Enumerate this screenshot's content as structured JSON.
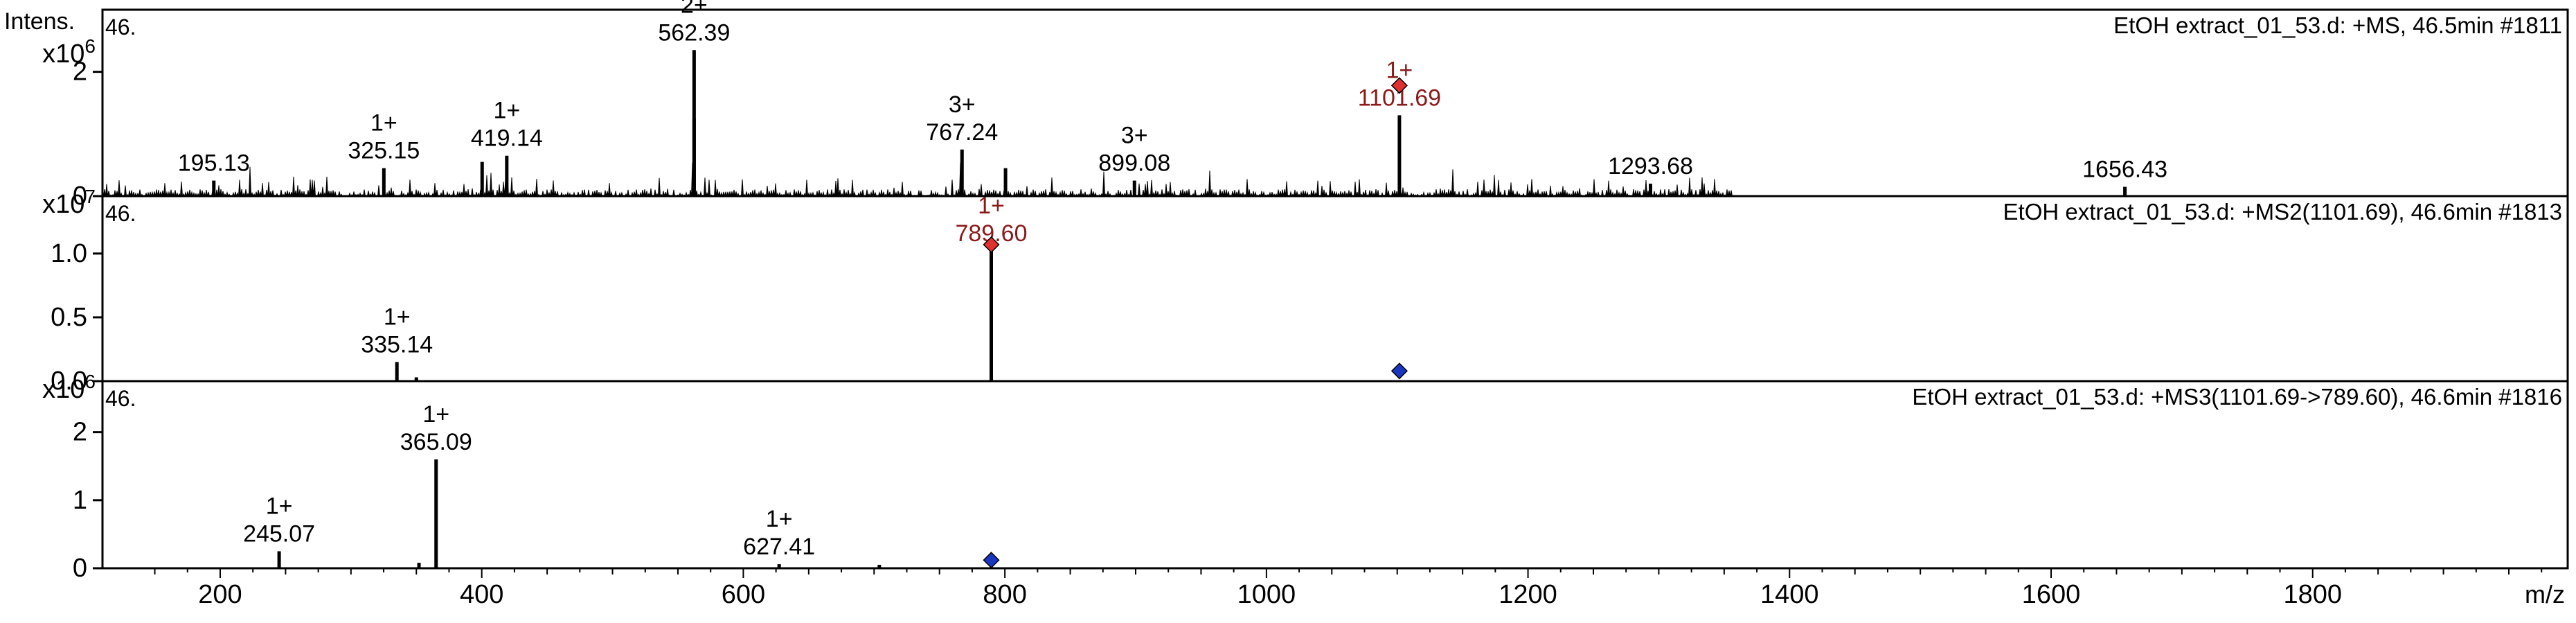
{
  "chart_data": [
    {
      "type": "line",
      "title": "EtOH extract_01_53.d: +MS, 46.5min #1811",
      "ylabel": "Intens.",
      "y_multiplier": "x10",
      "y_exponent": "6",
      "corner_label": "46.",
      "ylim": [
        0,
        3.0
      ],
      "yticks": [
        0,
        2
      ],
      "peaks": [
        {
          "x": 195.13,
          "y": 0.25
        },
        {
          "x": 325.15,
          "y": 0.45
        },
        {
          "x": 400.3,
          "y": 0.55
        },
        {
          "x": 419.14,
          "y": 0.65
        },
        {
          "x": 562.39,
          "y": 1.25
        },
        {
          "x": 562.39,
          "y": 2.35
        },
        {
          "x": 767.24,
          "y": 0.75
        },
        {
          "x": 800.5,
          "y": 0.45
        },
        {
          "x": 899.08,
          "y": 0.25
        },
        {
          "x": 1101.69,
          "y": 1.3
        },
        {
          "x": 1293.68,
          "y": 0.2
        },
        {
          "x": 1656.43,
          "y": 0.15
        }
      ],
      "labels": [
        {
          "x": 195.13,
          "y": 0.25,
          "mz": "195.13",
          "charge": "",
          "color": "#000000"
        },
        {
          "x": 325.15,
          "y": 0.45,
          "mz": "325.15",
          "charge": "1+",
          "color": "#000000"
        },
        {
          "x": 419.14,
          "y": 0.65,
          "mz": "419.14",
          "charge": "1+",
          "color": "#000000"
        },
        {
          "x": 562.39,
          "y": 2.35,
          "mz": "562.39",
          "charge": "2+",
          "color": "#000000"
        },
        {
          "x": 767.24,
          "y": 0.75,
          "mz": "767.24",
          "charge": "3+",
          "color": "#000000"
        },
        {
          "x": 899.08,
          "y": 0.25,
          "mz": "899.08",
          "charge": "3+",
          "color": "#000000"
        },
        {
          "x": 1101.69,
          "y": 1.3,
          "mz": "1101.69",
          "charge": "1+",
          "color": "#8b1a1a"
        },
        {
          "x": 1293.68,
          "y": 0.2,
          "mz": "1293.68",
          "charge": "",
          "color": "#000000"
        },
        {
          "x": 1656.43,
          "y": 0.15,
          "mz": "1656.43",
          "charge": "",
          "color": "#000000"
        }
      ],
      "markers": [
        {
          "x": 1101.69,
          "y": 1.78,
          "color": "#e03030"
        }
      ],
      "noise": true
    },
    {
      "type": "line",
      "title": "EtOH extract_01_53.d: +MS2(1101.69), 46.6min #1813",
      "y_multiplier": "x10",
      "y_exponent": "7",
      "corner_label": "46.",
      "ylim": [
        0,
        1.45
      ],
      "yticks": [
        0.0,
        0.5,
        1.0
      ],
      "ytick_labels": [
        "0.0",
        "0.5",
        "1.0"
      ],
      "peaks": [
        {
          "x": 335.14,
          "y": 0.15
        },
        {
          "x": 350.0,
          "y": 0.03
        },
        {
          "x": 789.6,
          "y": 1.02
        }
      ],
      "labels": [
        {
          "x": 335.14,
          "y": 0.15,
          "mz": "335.14",
          "charge": "1+",
          "color": "#000000"
        },
        {
          "x": 789.6,
          "y": 1.02,
          "mz": "789.60",
          "charge": "1+",
          "color": "#8b1a1a"
        }
      ],
      "markers": [
        {
          "x": 789.6,
          "y": 1.07,
          "color": "#e03030"
        },
        {
          "x": 1101.69,
          "y": 0.08,
          "color": "#1a35c0"
        }
      ],
      "noise": false
    },
    {
      "type": "line",
      "title": "EtOH extract_01_53.d: +MS3(1101.69->789.60), 46.6min #1816",
      "y_multiplier": "x10",
      "y_exponent": "6",
      "corner_label": "46.",
      "ylim": [
        0,
        2.75
      ],
      "yticks": [
        0,
        1,
        2
      ],
      "xlabel": "m/z",
      "xlim": [
        110,
        1995
      ],
      "xticks": [
        200,
        400,
        600,
        800,
        1000,
        1200,
        1400,
        1600,
        1800
      ],
      "peaks": [
        {
          "x": 245.07,
          "y": 0.25
        },
        {
          "x": 352.0,
          "y": 0.08
        },
        {
          "x": 365.09,
          "y": 1.6
        },
        {
          "x": 627.41,
          "y": 0.06
        },
        {
          "x": 704.0,
          "y": 0.05
        }
      ],
      "labels": [
        {
          "x": 245.07,
          "y": 0.25,
          "mz": "245.07",
          "charge": "1+",
          "color": "#000000"
        },
        {
          "x": 365.09,
          "y": 1.6,
          "mz": "365.09",
          "charge": "1+",
          "color": "#000000"
        },
        {
          "x": 627.41,
          "y": 0.06,
          "mz": "627.41",
          "charge": "1+",
          "color": "#000000"
        }
      ],
      "markers": [
        {
          "x": 789.6,
          "y": 0.12,
          "color": "#1a35c0"
        }
      ],
      "noise": false
    }
  ]
}
